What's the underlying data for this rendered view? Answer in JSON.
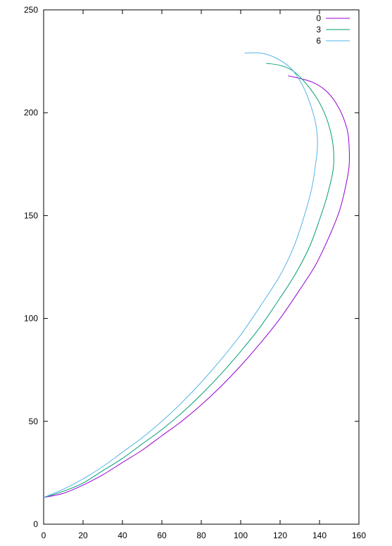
{
  "chart_data": {
    "type": "line",
    "title": "",
    "xlabel": "",
    "ylabel": "",
    "xlim": [
      0,
      160
    ],
    "ylim": [
      0,
      250
    ],
    "x_ticks": [
      0,
      20,
      40,
      60,
      80,
      100,
      120,
      140,
      160
    ],
    "y_ticks": [
      0,
      50,
      100,
      150,
      200,
      250
    ],
    "grid": false,
    "legend_position": "top-right",
    "series": [
      {
        "name": "0",
        "color": "#9400d3",
        "points": [
          [
            0,
            13
          ],
          [
            10,
            15
          ],
          [
            20,
            19
          ],
          [
            30,
            24
          ],
          [
            40,
            30
          ],
          [
            50,
            36
          ],
          [
            60,
            43
          ],
          [
            70,
            50
          ],
          [
            80,
            58
          ],
          [
            90,
            67
          ],
          [
            100,
            77
          ],
          [
            110,
            88
          ],
          [
            120,
            100
          ],
          [
            130,
            114
          ],
          [
            138,
            126
          ],
          [
            145,
            140
          ],
          [
            150,
            152
          ],
          [
            153,
            163
          ],
          [
            155,
            174
          ],
          [
            155,
            184
          ],
          [
            154,
            192
          ],
          [
            150,
            202
          ],
          [
            144,
            210
          ],
          [
            136,
            215
          ],
          [
            124,
            218
          ]
        ]
      },
      {
        "name": "3",
        "color": "#009e73",
        "points": [
          [
            0,
            13
          ],
          [
            10,
            16
          ],
          [
            20,
            20
          ],
          [
            30,
            26
          ],
          [
            40,
            32
          ],
          [
            50,
            39
          ],
          [
            60,
            46
          ],
          [
            70,
            54
          ],
          [
            80,
            63
          ],
          [
            90,
            73
          ],
          [
            100,
            84
          ],
          [
            110,
            96
          ],
          [
            120,
            110
          ],
          [
            128,
            122
          ],
          [
            135,
            135
          ],
          [
            140,
            148
          ],
          [
            144,
            160
          ],
          [
            147,
            173
          ],
          [
            147,
            183
          ],
          [
            145,
            193
          ],
          [
            141,
            203
          ],
          [
            135,
            212
          ],
          [
            127,
            220
          ],
          [
            120,
            223
          ],
          [
            113,
            224
          ]
        ]
      },
      {
        "name": "6",
        "color": "#56b4e9",
        "points": [
          [
            0,
            13
          ],
          [
            10,
            17
          ],
          [
            20,
            22
          ],
          [
            30,
            28
          ],
          [
            40,
            35
          ],
          [
            50,
            42
          ],
          [
            60,
            50
          ],
          [
            70,
            59
          ],
          [
            80,
            69
          ],
          [
            90,
            80
          ],
          [
            100,
            92
          ],
          [
            110,
            106
          ],
          [
            120,
            121
          ],
          [
            127,
            135
          ],
          [
            132,
            149
          ],
          [
            136,
            163
          ],
          [
            138,
            175
          ],
          [
            139,
            185
          ],
          [
            138,
            195
          ],
          [
            135,
            205
          ],
          [
            131,
            214
          ],
          [
            125,
            222
          ],
          [
            117,
            227
          ],
          [
            110,
            229
          ],
          [
            102,
            229
          ]
        ]
      }
    ]
  }
}
